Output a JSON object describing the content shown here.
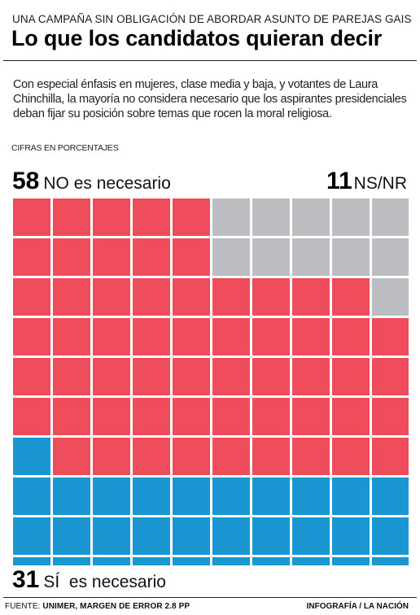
{
  "kicker": "UNA CAMPAÑA SIN OBLIGACIÓN DE ABORDAR ASUNTO DE PAREJAS GAIS",
  "headline": "Lo que los candidatos quieran decir",
  "intro": "Con especial énfasis en mujeres, clase media y baja, y votantes de Laura Chinchilla, la mayoría no considera necesario que los aspirantes presidenciales deban fijar su posición sobre temas que rocen la moral religiosa.",
  "units_note": "CIFRAS EN PORCENTAJES",
  "labels": {
    "no_value": "58",
    "no_text": "NO es necesario",
    "nsnr_value": "11",
    "nsnr_text": "NS/NR",
    "si_value": "31",
    "si_text": "SÍ  es necesario"
  },
  "footer": {
    "source_label": "FUENTE:",
    "source_text": "UNIMER, MARGEN DE ERROR 2.8 PP",
    "credit_prefix": "INFOGRAFÍA /",
    "credit_brand": "LA NACIÓN"
  },
  "colors": {
    "no": "#ef4c5c",
    "nsnr": "#bcbdc0",
    "si": "#1a96d2"
  },
  "chart_data": {
    "type": "waffle",
    "total_cells": 100,
    "grid": [
      10,
      10
    ],
    "series": [
      {
        "name": "NO es necesario",
        "value": 58
      },
      {
        "name": "NS/NR",
        "value": 11
      },
      {
        "name": "SÍ  es necesario",
        "value": 31
      }
    ]
  }
}
